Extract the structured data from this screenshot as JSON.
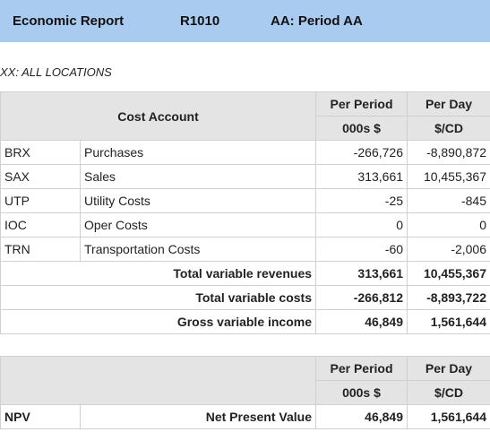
{
  "header": {
    "title": "Economic Report",
    "code": "R1010",
    "period": "AA: Period AA"
  },
  "subtitle": "XX: ALL LOCATIONS",
  "table": {
    "account_header": "Cost Account",
    "col1_label": "Per Period",
    "col1_unit": "000s $",
    "col2_label": "Per Day",
    "col2_unit": "$/CD",
    "rows": [
      {
        "code": "BRX",
        "name": "Purchases",
        "per_period": "-266,726",
        "per_day": "-8,890,872"
      },
      {
        "code": "SAX",
        "name": "Sales",
        "per_period": "313,661",
        "per_day": "10,455,367"
      },
      {
        "code": "UTP",
        "name": "Utility Costs",
        "per_period": "-25",
        "per_day": "-845"
      },
      {
        "code": "IOC",
        "name": "Oper Costs",
        "per_period": "0",
        "per_day": "0"
      },
      {
        "code": "TRN",
        "name": "Transportation Costs",
        "per_period": "-60",
        "per_day": "-2,006"
      }
    ],
    "totals": [
      {
        "label": "Total variable revenues",
        "per_period": "313,661",
        "per_day": "10,455,367"
      },
      {
        "label": "Total variable costs",
        "per_period": "-266,812",
        "per_day": "-8,893,722"
      },
      {
        "label": "Gross variable income",
        "per_period": "46,849",
        "per_day": "1,561,644"
      }
    ]
  },
  "npv_table": {
    "col1_label": "Per Period",
    "col1_unit": "000s $",
    "col2_label": "Per Day",
    "col2_unit": "$/CD",
    "row": {
      "code": "NPV",
      "name": "Net Present Value",
      "per_period": "46,849",
      "per_day": "1,561,644"
    }
  }
}
